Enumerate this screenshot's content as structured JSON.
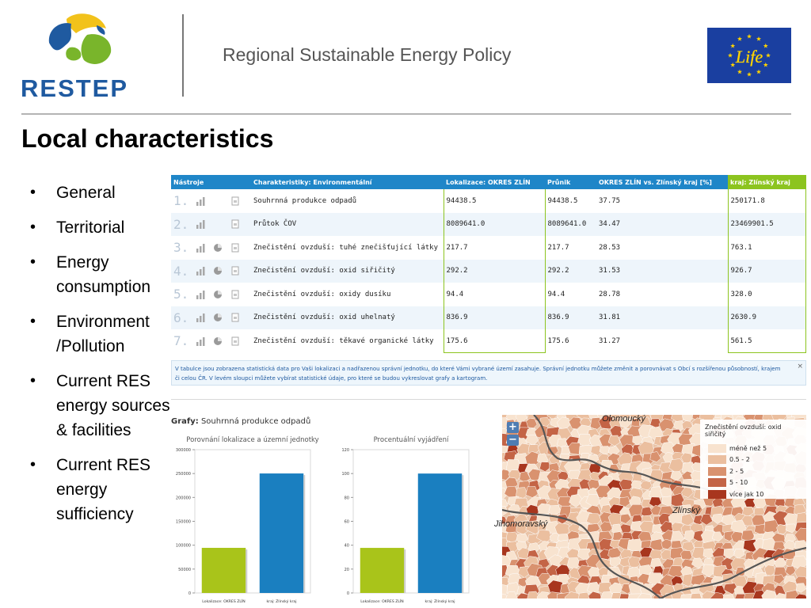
{
  "header": {
    "logo_text": "RESTEP",
    "title": "Regional Sustainable Energy Policy",
    "eu_logo_text": "Life"
  },
  "slide": {
    "title": "Local characteristics",
    "bullets": [
      "General",
      "Territorial",
      "Energy consumption",
      "Environment /Pollution",
      "Current RES energy sources & facilities",
      "Current RES energy sufficiency"
    ]
  },
  "table": {
    "headers": {
      "tools": "Nástroje",
      "characteristic": "Charakteristiky: Environmentální",
      "locality": "Lokalizace: OKRES ZLÍN",
      "intersection": "Průnik",
      "ratio": "OKRES ZLÍN vs. Zlínský kraj [%]",
      "region": "kraj: Zlínský kraj"
    },
    "rows": [
      {
        "index": "1.",
        "name": "Souhrnná produkce odpadů",
        "locality": "94438.5",
        "intersection": "94438.5",
        "ratio": "37.75",
        "region": "250171.8",
        "pie": false
      },
      {
        "index": "2.",
        "name": "Průtok ČOV",
        "locality": "8089641.0",
        "intersection": "8089641.0",
        "ratio": "34.47",
        "region": "23469901.5",
        "pie": false
      },
      {
        "index": "3.",
        "name": "Znečistění ovzduší: tuhé znečišťující látky",
        "locality": "217.7",
        "intersection": "217.7",
        "ratio": "28.53",
        "region": "763.1",
        "pie": true
      },
      {
        "index": "4.",
        "name": "Znečistění ovzduší: oxid siřičitý",
        "locality": "292.2",
        "intersection": "292.2",
        "ratio": "31.53",
        "region": "926.7",
        "pie": true
      },
      {
        "index": "5.",
        "name": "Znečistění ovzduší: oxidy dusíku",
        "locality": "94.4",
        "intersection": "94.4",
        "ratio": "28.78",
        "region": "328.0",
        "pie": true
      },
      {
        "index": "6.",
        "name": "Znečistění ovzduší: oxid uhelnatý",
        "locality": "836.9",
        "intersection": "836.9",
        "ratio": "31.81",
        "region": "2630.9",
        "pie": true
      },
      {
        "index": "7.",
        "name": "Znečistění ovzduší: těkavé organické látky",
        "locality": "175.6",
        "intersection": "175.6",
        "ratio": "31.27",
        "region": "561.5",
        "pie": true
      }
    ]
  },
  "info": {
    "line1": "V tabulce jsou zobrazena statistická data pro Vaši lokalizaci a nadřazenou správní jednotku, do které Vámi vybrané území zasahuje. Správní jednotku můžete změnit a porovnávat s Obcí s rozšířenou působností, krajem",
    "line2": "či celou ČR. V levém sloupci můžete vybírat statistické údaje, pro které se budou vykreslovat grafy a kartogram.",
    "close": "×"
  },
  "charts": {
    "label": "Grafy:",
    "subject": "Souhrnná produkce odpadů"
  },
  "chart_data": [
    {
      "type": "bar",
      "title": "Porovnání lokalizace a územní jednotky",
      "categories": [
        "Lokalizace: OKRES ZLÍN",
        "kraj: Zlínský kraj"
      ],
      "values": [
        94438.5,
        250171.8
      ],
      "colors": [
        "#a9c41a",
        "#1a7fc0"
      ],
      "ylim": [
        0,
        300000
      ],
      "yticks": [
        0,
        50000,
        100000,
        150000,
        200000,
        250000,
        300000
      ]
    },
    {
      "type": "bar",
      "title": "Procentuální vyjádření",
      "categories": [
        "Lokalizace: OKRES ZLÍN",
        "kraj: Zlínský kraj"
      ],
      "values": [
        37.75,
        100
      ],
      "colors": [
        "#a9c41a",
        "#1a7fc0"
      ],
      "ylim": [
        0,
        120
      ],
      "yticks": [
        0,
        20,
        40,
        60,
        80,
        100,
        120
      ]
    }
  ],
  "map": {
    "zoom_in": "+",
    "zoom_out": "−",
    "labels": {
      "north": "Olomoucký",
      "center": "Zlínský",
      "west": "Jihomoravský"
    },
    "legend_title": "Znečistění ovzduší: oxid siřičitý",
    "legend": [
      {
        "label": "méně než 5",
        "color": "#f8e3cf"
      },
      {
        "label": "0.5 - 2",
        "color": "#ebbf9f"
      },
      {
        "label": "2 - 5",
        "color": "#d9926f"
      },
      {
        "label": "5 - 10",
        "color": "#c46446"
      },
      {
        "label": "více jak 10",
        "color": "#a8361e"
      }
    ]
  }
}
